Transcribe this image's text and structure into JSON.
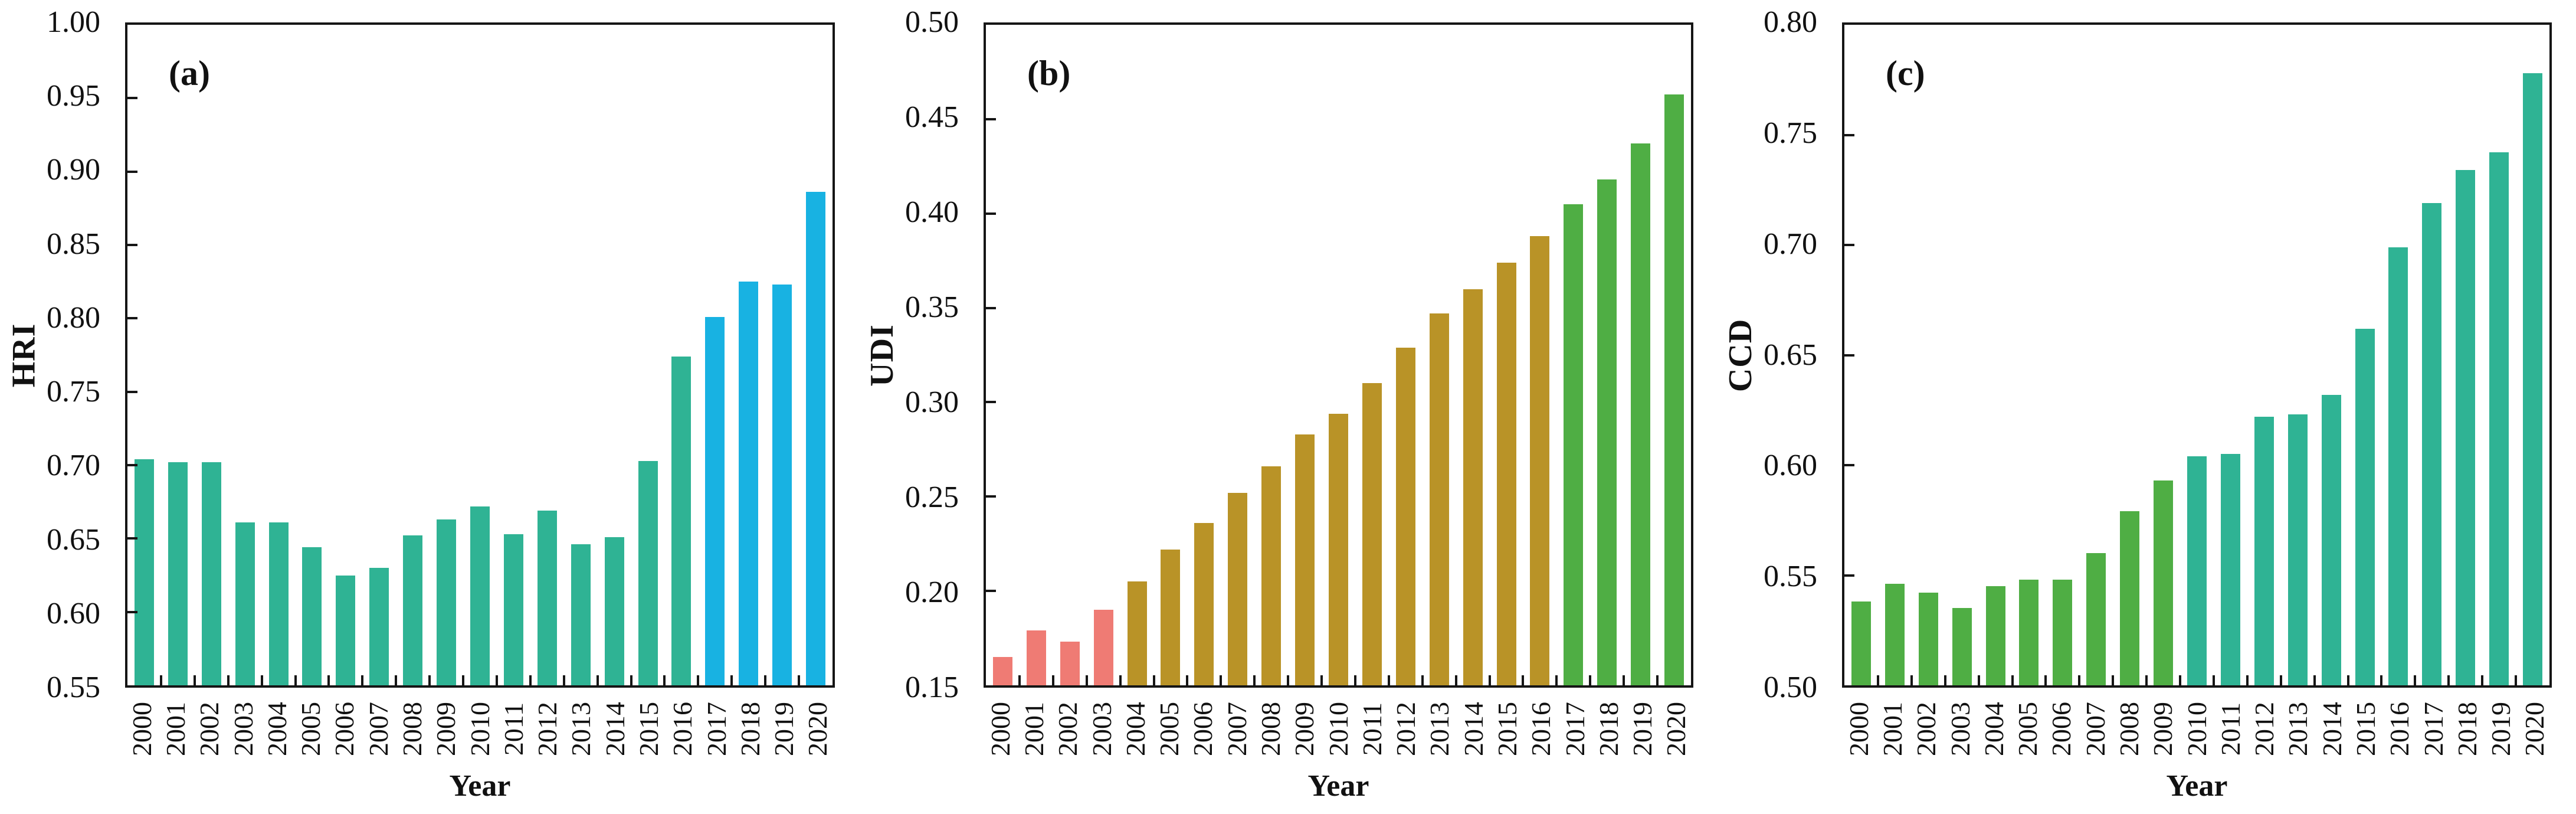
{
  "palette": {
    "teal": "#2fb394",
    "blue": "#18b2e2",
    "pink": "#ef7b74",
    "gold": "#b99327",
    "green": "#4fae44",
    "axis": "#151515",
    "background": "#ffffff"
  },
  "chart_data": [
    {
      "type": "bar",
      "panel_label": "(a)",
      "ylabel": "HRI",
      "xlabel": "Year",
      "ylim": [
        0.55,
        1.0
      ],
      "ytick_labels": [
        "0.55",
        "0.60",
        "0.65",
        "0.70",
        "0.75",
        "0.80",
        "0.85",
        "0.90",
        "0.95",
        "1.00"
      ],
      "grid": false,
      "legend": "none",
      "categories": [
        "2000",
        "2001",
        "2002",
        "2003",
        "2004",
        "2005",
        "2006",
        "2007",
        "2008",
        "2009",
        "2010",
        "2011",
        "2012",
        "2013",
        "2014",
        "2015",
        "2016",
        "2017",
        "2018",
        "2019",
        "2020"
      ],
      "values": [
        0.704,
        0.702,
        0.702,
        0.661,
        0.661,
        0.644,
        0.625,
        0.63,
        0.652,
        0.663,
        0.672,
        0.653,
        0.669,
        0.646,
        0.651,
        0.703,
        0.774,
        0.801,
        0.825,
        0.823,
        0.886
      ],
      "bar_colors": [
        "#2fb394",
        "#2fb394",
        "#2fb394",
        "#2fb394",
        "#2fb394",
        "#2fb394",
        "#2fb394",
        "#2fb394",
        "#2fb394",
        "#2fb394",
        "#2fb394",
        "#2fb394",
        "#2fb394",
        "#2fb394",
        "#2fb394",
        "#2fb394",
        "#2fb394",
        "#18b2e2",
        "#18b2e2",
        "#18b2e2",
        "#18b2e2"
      ]
    },
    {
      "type": "bar",
      "panel_label": "(b)",
      "ylabel": "UDI",
      "xlabel": "Year",
      "ylim": [
        0.15,
        0.5
      ],
      "ytick_labels": [
        "0.15",
        "0.20",
        "0.25",
        "0.30",
        "0.35",
        "0.40",
        "0.45",
        "0.50"
      ],
      "grid": false,
      "legend": "none",
      "categories": [
        "2000",
        "2001",
        "2002",
        "2003",
        "2004",
        "2005",
        "2006",
        "2007",
        "2008",
        "2009",
        "2010",
        "2011",
        "2012",
        "2013",
        "2014",
        "2015",
        "2016",
        "2017",
        "2018",
        "2019",
        "2020"
      ],
      "values": [
        0.165,
        0.179,
        0.173,
        0.19,
        0.205,
        0.222,
        0.236,
        0.252,
        0.266,
        0.283,
        0.294,
        0.31,
        0.329,
        0.347,
        0.36,
        0.374,
        0.388,
        0.405,
        0.418,
        0.437,
        0.463
      ],
      "bar_colors": [
        "#ef7b74",
        "#ef7b74",
        "#ef7b74",
        "#ef7b74",
        "#b99327",
        "#b99327",
        "#b99327",
        "#b99327",
        "#b99327",
        "#b99327",
        "#b99327",
        "#b99327",
        "#b99327",
        "#b99327",
        "#b99327",
        "#b99327",
        "#b99327",
        "#4fae44",
        "#4fae44",
        "#4fae44",
        "#4fae44"
      ]
    },
    {
      "type": "bar",
      "panel_label": "(c)",
      "ylabel": "CCD",
      "xlabel": "Year",
      "ylim": [
        0.5,
        0.8
      ],
      "ytick_labels": [
        "0.50",
        "0.55",
        "0.60",
        "0.65",
        "0.70",
        "0.75",
        "0.80"
      ],
      "grid": false,
      "legend": "none",
      "categories": [
        "2000",
        "2001",
        "2002",
        "2003",
        "2004",
        "2005",
        "2006",
        "2007",
        "2008",
        "2009",
        "2010",
        "2011",
        "2012",
        "2013",
        "2014",
        "2015",
        "2016",
        "2017",
        "2018",
        "2019",
        "2020"
      ],
      "values": [
        0.538,
        0.546,
        0.542,
        0.535,
        0.545,
        0.548,
        0.548,
        0.56,
        0.579,
        0.593,
        0.604,
        0.605,
        0.622,
        0.623,
        0.632,
        0.662,
        0.699,
        0.719,
        0.734,
        0.742,
        0.778
      ],
      "bar_colors": [
        "#4fae44",
        "#4fae44",
        "#4fae44",
        "#4fae44",
        "#4fae44",
        "#4fae44",
        "#4fae44",
        "#4fae44",
        "#4fae44",
        "#4fae44",
        "#2fb394",
        "#2fb394",
        "#2fb394",
        "#2fb394",
        "#2fb394",
        "#2fb394",
        "#2fb394",
        "#2fb394",
        "#2fb394",
        "#2fb394",
        "#2fb394"
      ]
    }
  ]
}
